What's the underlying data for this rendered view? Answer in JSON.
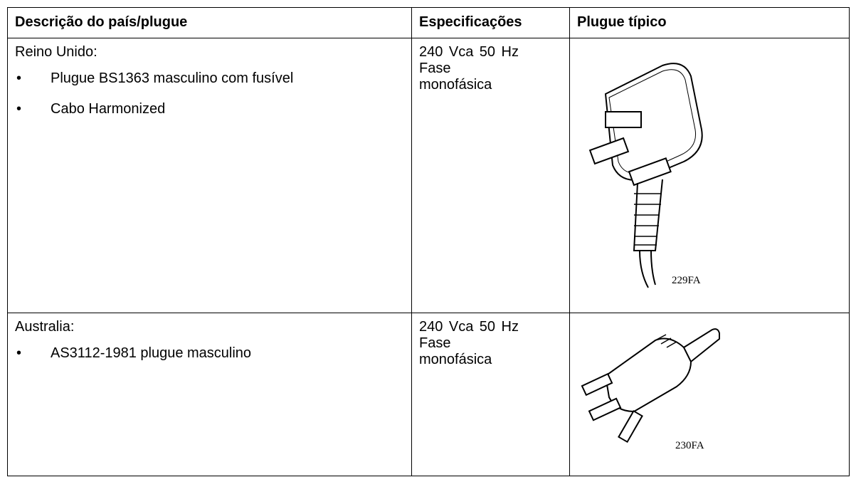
{
  "table": {
    "header": [
      "Descrição do país/plugue",
      "Especificações",
      "Plugue típico"
    ],
    "rows": [
      {
        "country": "Reino Unido:",
        "items": [
          "Plugue BS1363 masculino com fusível",
          "Cabo Harmonized"
        ],
        "spec": "240 Vca 50 Hz Fase monofásica",
        "figure": "229FA"
      },
      {
        "country": "Australia:",
        "items": [
          "AS3112-1981 plugue masculino"
        ],
        "spec": "240 Vca 50 Hz Fase monofásica",
        "figure": "230FA"
      }
    ]
  }
}
